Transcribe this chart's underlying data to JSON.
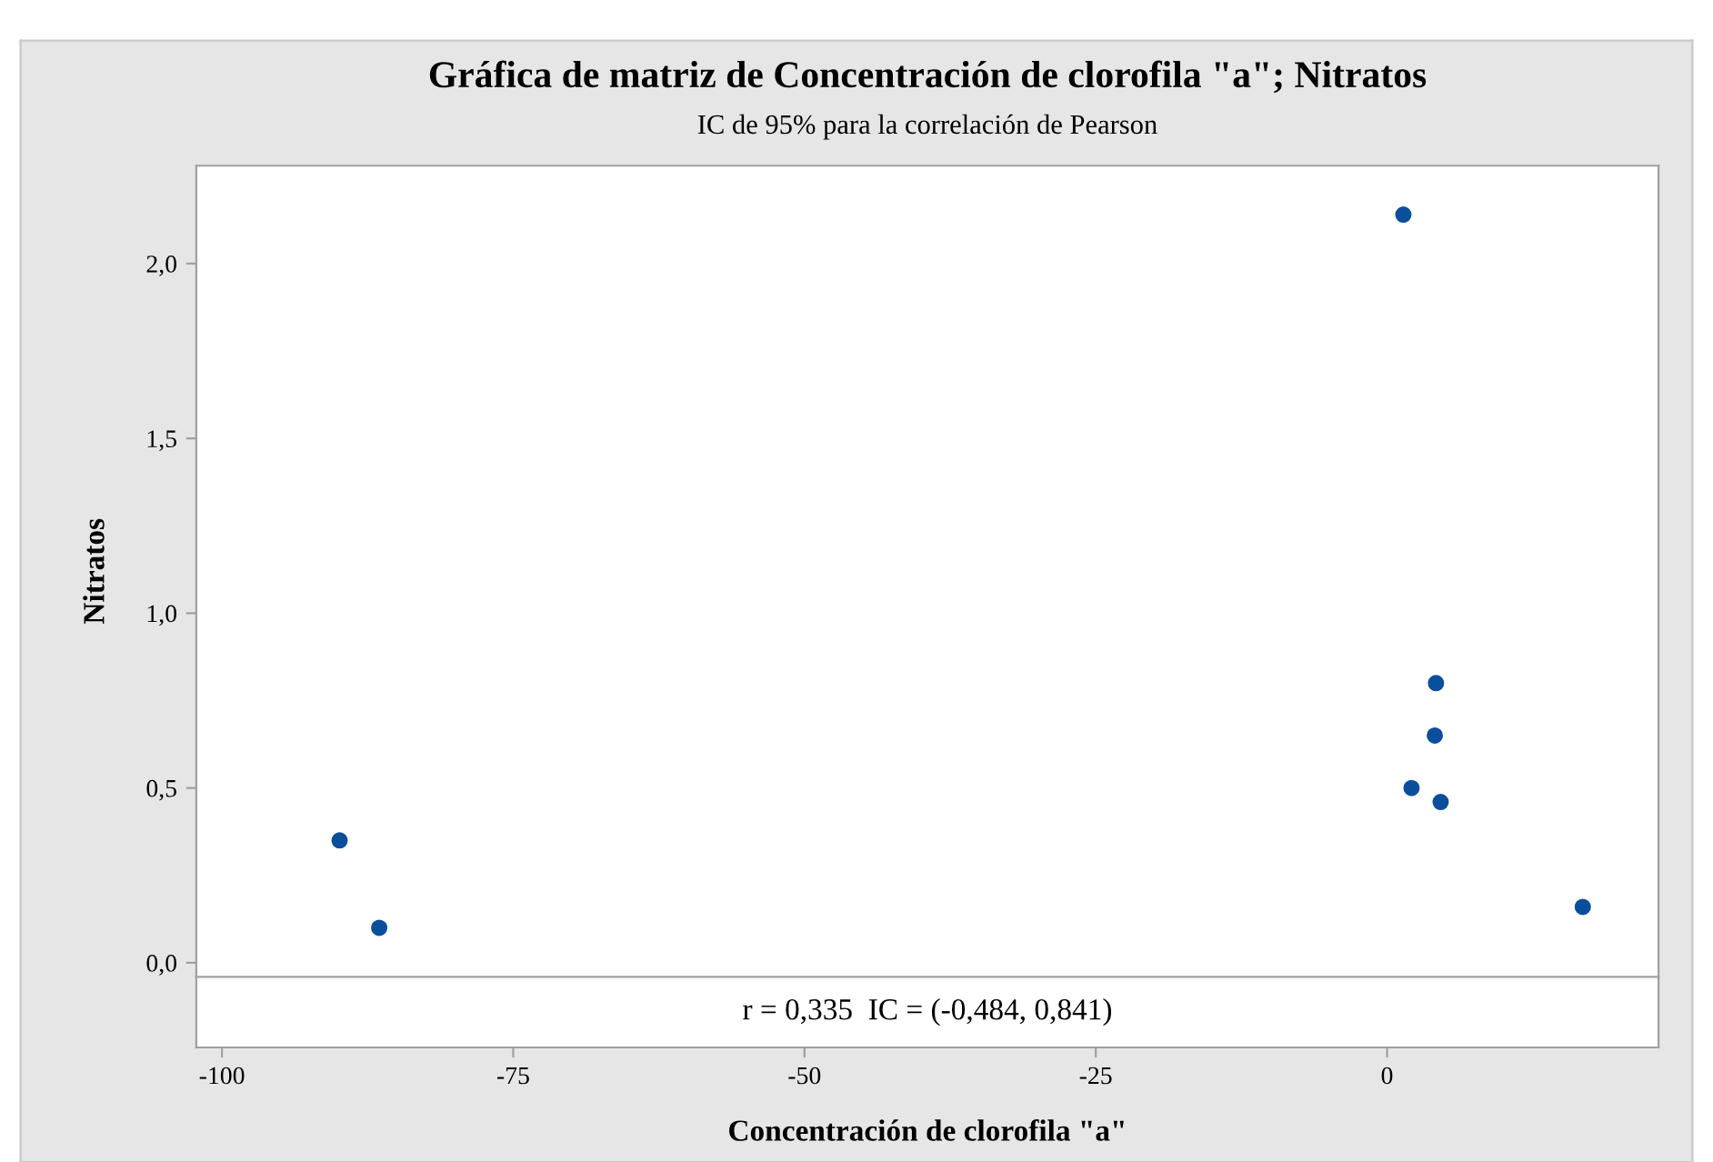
{
  "chart_data": {
    "type": "scatter",
    "title": "Gráfica de matriz de Concentración de clorofila \"a\"; Nitratos",
    "subtitle": "IC de 95% para la correlación de Pearson",
    "xlabel": "Concentración de clorofila \"a\"",
    "ylabel": "Nitratos",
    "annotations": [
      "r = 0,335  IC = (-0,484, 0,841)"
    ],
    "x": [
      -89.9,
      -86.5,
      1.4,
      2.1,
      4.1,
      4.2,
      4.6,
      16.8
    ],
    "series": [
      {
        "color": "#0b4f9c",
        "values": [
          0.35,
          0.1,
          2.14,
          0.5,
          0.65,
          0.8,
          0.46,
          0.16
        ]
      }
    ],
    "xlim": [
      -102.2,
      23.3
    ],
    "ylim": [
      -0.04,
      2.28
    ],
    "xticks": [
      {
        "value": -100,
        "label": "-100"
      },
      {
        "value": -75,
        "label": "-75"
      },
      {
        "value": -50,
        "label": "-50"
      },
      {
        "value": -25,
        "label": "-25"
      },
      0
    ],
    "yticks": [
      {
        "value": 0,
        "label": "0,0"
      },
      {
        "value": 0.5,
        "label": "0,5"
      },
      {
        "value": 1,
        "label": "1,0"
      },
      {
        "value": 1.5,
        "label": "1,5"
      },
      {
        "value": 2,
        "label": "2,0"
      }
    ],
    "grid": false,
    "legend": false,
    "marker": "circle"
  }
}
